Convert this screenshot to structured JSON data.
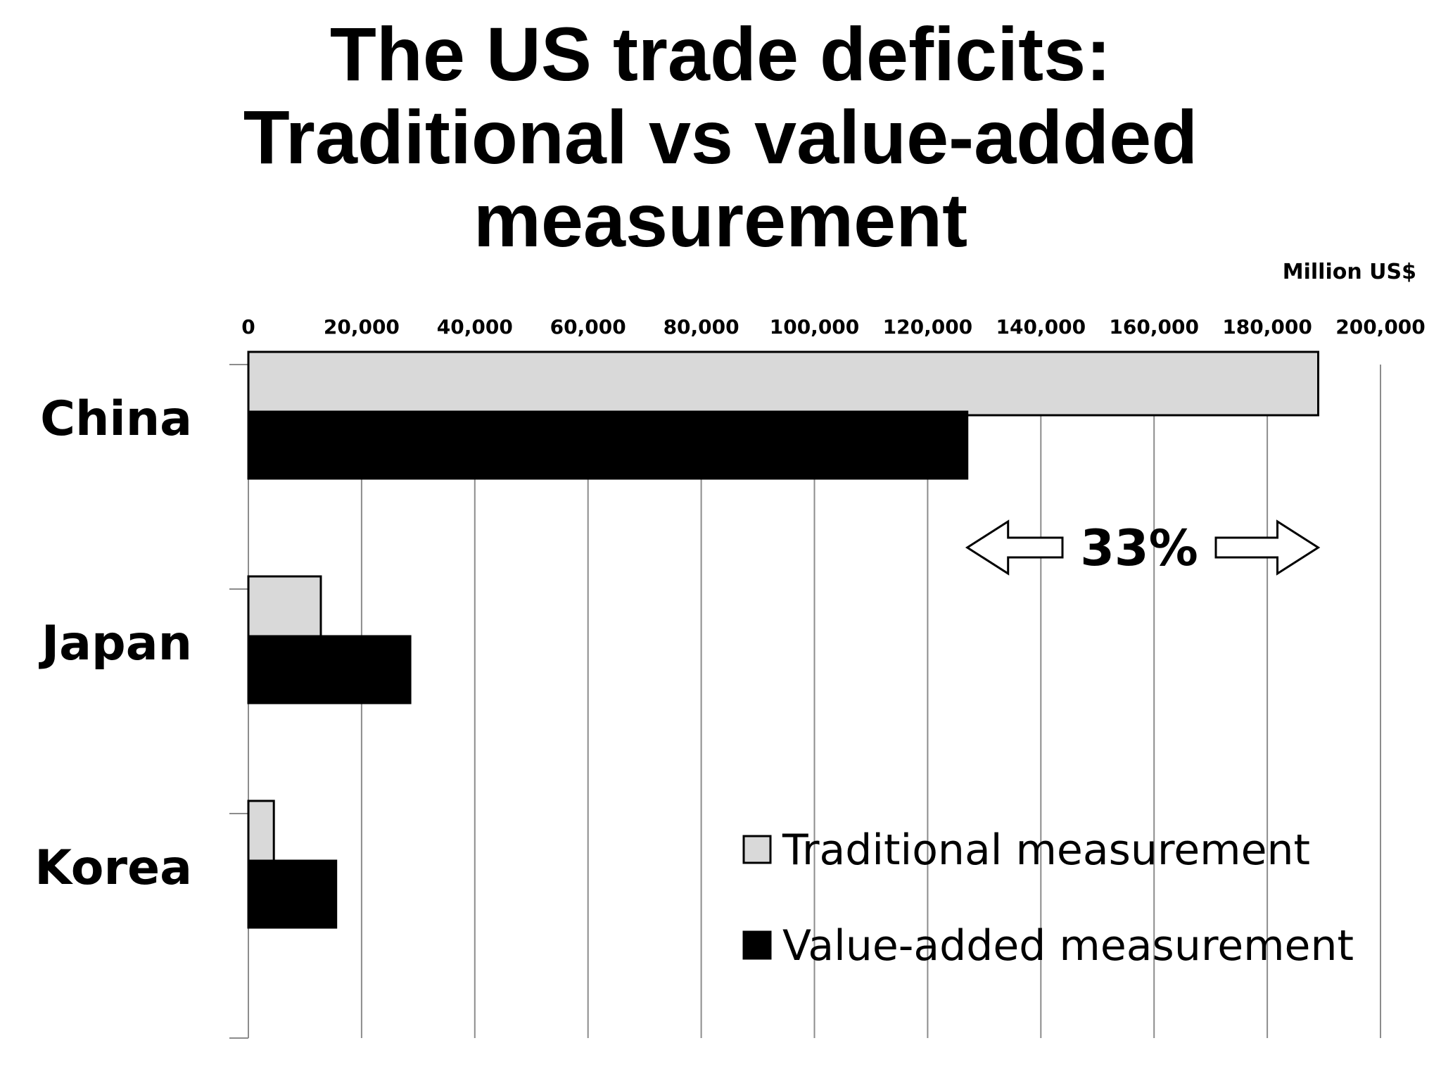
{
  "chart_data": {
    "type": "bar",
    "orientation": "horizontal",
    "title_lines": [
      "The US trade deficits:",
      "Traditional vs value-added measurement"
    ],
    "unit_label": "Million US$",
    "x_ticks": [
      "0",
      "20,000",
      "40,000",
      "60,000",
      "80,000",
      "100,000",
      "120,000",
      "140,000",
      "160,000",
      "180,000",
      "200,000"
    ],
    "xlim": [
      0,
      200000
    ],
    "grid": true,
    "categories": [
      "China",
      "Japan",
      "Korea"
    ],
    "series": [
      {
        "name": "Traditional measurement",
        "color": "#d9d9d9",
        "values": [
          189000,
          12800,
          4500
        ]
      },
      {
        "name": "Value-added measurement",
        "color": "#000000",
        "values": [
          127000,
          28600,
          15500
        ]
      }
    ],
    "legend_position": "bottom-right",
    "annotation": {
      "text": "33%",
      "from": 127000,
      "to": 189000,
      "category": "China"
    }
  }
}
